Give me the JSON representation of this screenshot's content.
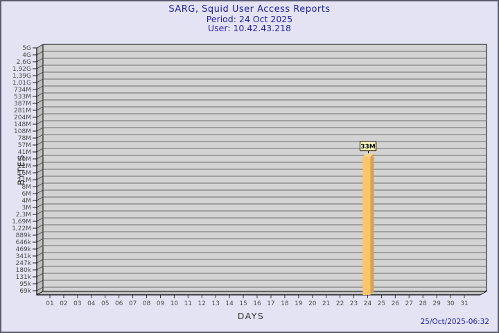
{
  "header": {
    "title": "SARG, Squid User Access Reports",
    "period": "Period: 24 Oct 2025",
    "user": "User: 10.42.43.218"
  },
  "footer": {
    "timestamp": "25/Oct/2025-06:32"
  },
  "colors": {
    "background": "#E3E3F3",
    "border": "#5A5A6E",
    "title_text": "#2222A2",
    "plot_bg": "#D3D3D3",
    "grid_line": "#6B6B6B",
    "wall_fill": "#BEBEBE",
    "axis_line": "#000000",
    "tick_text": "#4A4A4A",
    "bar_front": "#FCC46F",
    "bar_side": "#D9A24B",
    "bar_top": "#F8D494",
    "value_box_bg": "#FFFFC6",
    "value_box_border": "#000000",
    "value_box_shadow": "#B89020"
  },
  "chart_data": {
    "type": "bar",
    "title": "SARG, Squid User Access Reports",
    "subtitle": [
      "Period: 24 Oct 2025",
      "User: 10.42.43.218"
    ],
    "xlabel": "DAYS",
    "ylabel": "BYTES",
    "y_scale": "log",
    "grid": true,
    "legend": false,
    "y_tick_labels": [
      "5G",
      "4G",
      "2,6G",
      "1,92G",
      "1,39G",
      "1,01G",
      "734M",
      "533M",
      "387M",
      "281M",
      "204M",
      "148M",
      "108M",
      "78M",
      "57M",
      "41M",
      "30M",
      "22M",
      "16M",
      "11M",
      "8M",
      "6M",
      "4M",
      "3M",
      "2,3M",
      "1,69M",
      "1,22M",
      "889k",
      "646k",
      "469k",
      "341k",
      "247k",
      "180k",
      "131k",
      "95k",
      "69k"
    ],
    "x_tick_labels": [
      "01",
      "02",
      "03",
      "04",
      "05",
      "06",
      "07",
      "08",
      "09",
      "10",
      "11",
      "12",
      "13",
      "14",
      "15",
      "16",
      "17",
      "18",
      "19",
      "20",
      "21",
      "22",
      "23",
      "24",
      "25",
      "26",
      "27",
      "28",
      "29",
      "30",
      "31"
    ],
    "bars": [
      {
        "day": "24",
        "value_bytes": 33000000,
        "label": "33M"
      }
    ]
  }
}
